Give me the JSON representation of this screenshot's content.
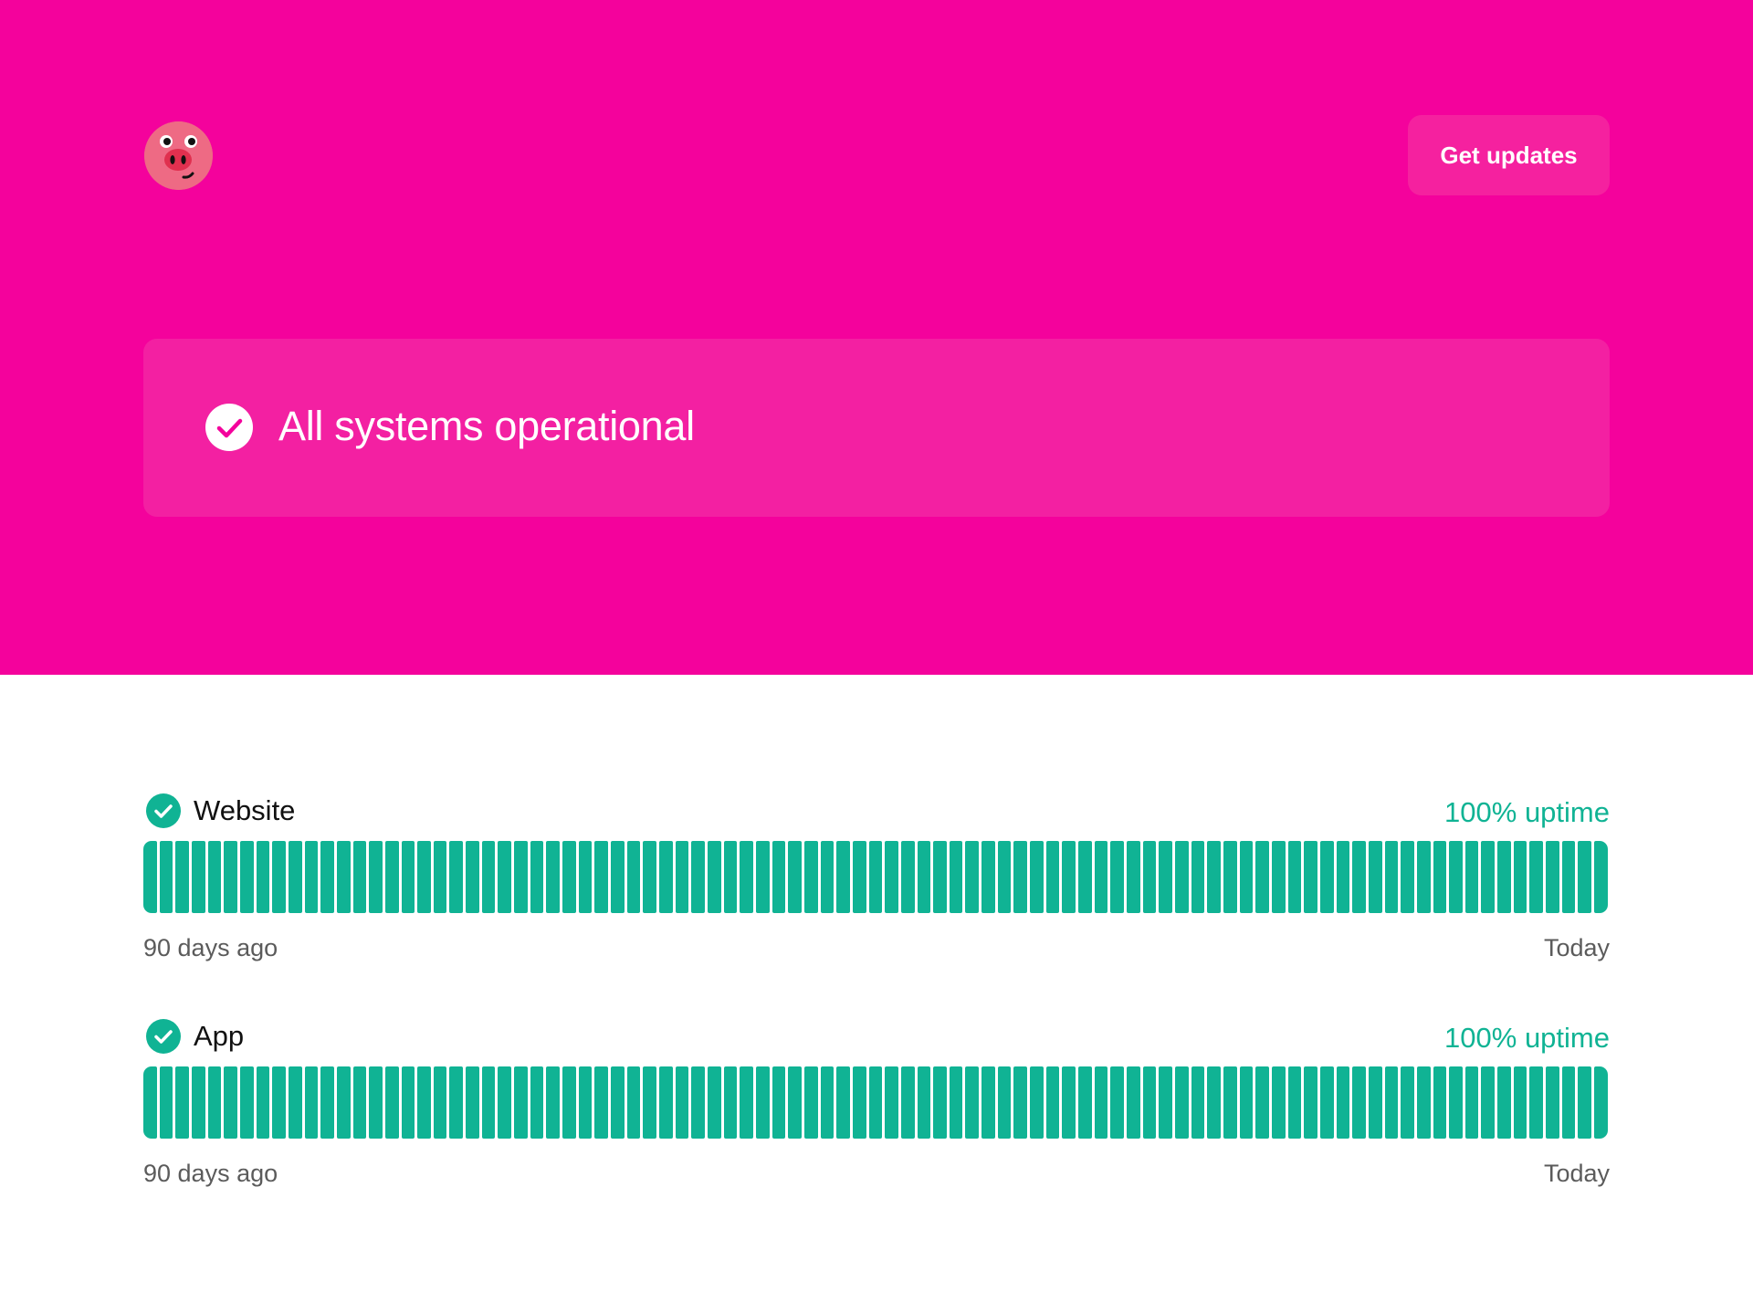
{
  "brand": {
    "colors": {
      "hero_bg": "#f4029c",
      "card_bg": "#f320a2",
      "operational": "#10b394",
      "muted_text": "#5b5b5b"
    },
    "logo_icon": "pig-face-icon"
  },
  "header": {
    "updates_label": "Get updates"
  },
  "status": {
    "icon": "check-circle-icon",
    "text": "All systems operational"
  },
  "components": [
    {
      "name": "Website",
      "uptime": "100% uptime",
      "days": 91,
      "range_start": "90 days ago",
      "range_end": "Today",
      "status_icon": "check-circle-icon"
    },
    {
      "name": "App",
      "uptime": "100% uptime",
      "days": 91,
      "range_start": "90 days ago",
      "range_end": "Today",
      "status_icon": "check-circle-icon"
    }
  ]
}
